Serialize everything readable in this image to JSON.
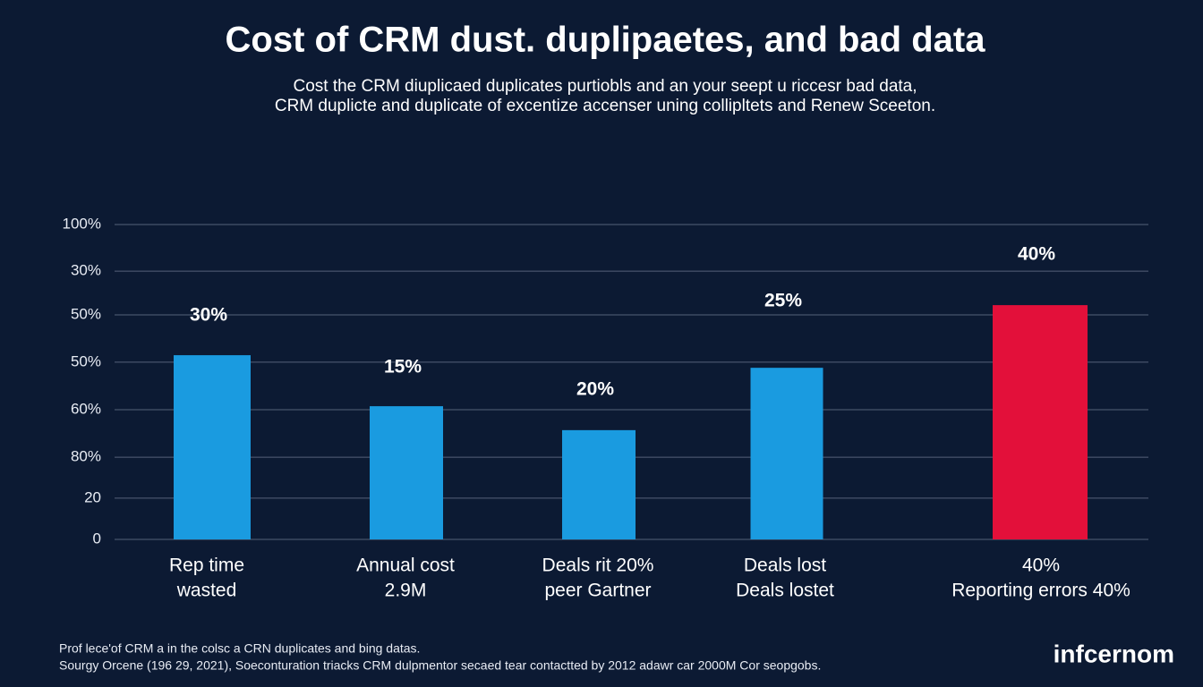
{
  "chart_data": {
    "type": "bar",
    "title": "Cost of CRM dust. duplipaetes, and bad data",
    "subtitle": [
      "Cost the CRM diuplicaed duplicates purtiobls and an your seept u riccesr bad data,",
      "CRM duplicte and duplicate of excentize accenser uning collipltets and Renew Sceeton."
    ],
    "categories": [
      [
        "Rep time",
        "wasted"
      ],
      [
        "Annual cost",
        "2.9M"
      ],
      [
        "Deals rit 20%",
        "peer Gartner"
      ],
      [
        "Deals lost",
        "Deals lostet"
      ],
      [
        "40%",
        "Reporting errors 40%"
      ]
    ],
    "values": [
      58.5,
      42.3,
      34.7,
      54.5,
      74.4
    ],
    "colors": [
      "#1a9be0",
      "#1a9be0",
      "#1a9be0",
      "#1a9be0",
      "#e3103a"
    ],
    "annotations": [
      "30%",
      "15%",
      "20%",
      "25%",
      "40%"
    ],
    "ylim": [
      0,
      100
    ],
    "yticks": [
      0,
      {
        "value": 13.1,
        "label": "20"
      },
      {
        "value": 26.1,
        "label": "80%"
      },
      {
        "value": 41.2,
        "label": "60%"
      },
      {
        "value": 56.3,
        "label": "50%"
      },
      {
        "value": 71.3,
        "label": "50%"
      },
      {
        "value": 85.2,
        "label": "30%"
      },
      {
        "value": 100,
        "label": "100%"
      }
    ],
    "grid": true,
    "footnotes": [
      "Prof lece'of CRM a in the colsc a CRN duplicates and bing datas.",
      "Sourgy Orcene (196 29, 2021), Soeconturation triacks CRM dulpmentor secaed tear contactted by 2012 adawr car 2000M Cor seopgobs."
    ],
    "brand": "infcernom"
  }
}
